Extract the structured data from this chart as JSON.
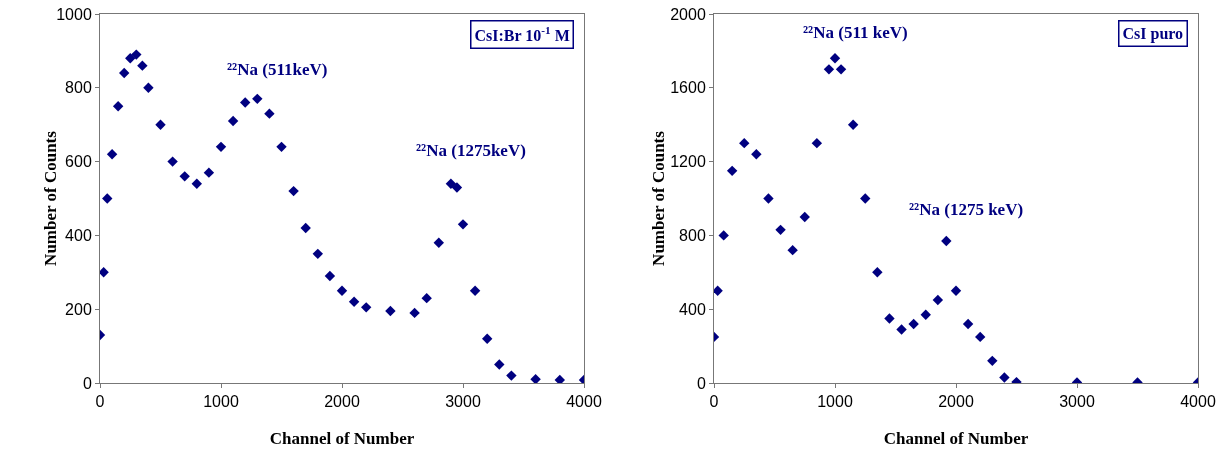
{
  "chart_data": [
    {
      "type": "scatter",
      "xlabel": "Channel of Number",
      "ylabel": "Number of Counts",
      "marker": "diamond",
      "xlim": [
        0,
        4000
      ],
      "xticks": [
        0,
        1000,
        2000,
        3000,
        4000
      ],
      "ylim": [
        0,
        1000
      ],
      "yticks": [
        0,
        200,
        400,
        600,
        800,
        1000
      ],
      "annotations": [
        "CsI:Br 10$^{-1}$ M",
        {
          "text": "²²Na (511keV)",
          "x": 1300,
          "y": 780
        },
        {
          "text": "²²Na (1275keV)",
          "x": 2900,
          "y": 560
        }
      ],
      "series": [
        {
          "color": "#000080",
          "x": [
            0,
            30,
            60,
            100,
            150,
            200,
            250,
            300,
            350,
            400,
            500,
            600,
            700,
            800,
            900,
            1000,
            1100,
            1200,
            1300,
            1400,
            1500,
            1600,
            1700,
            1800,
            1900,
            2000,
            2100,
            2200,
            2400,
            2600,
            2700,
            2800,
            2900,
            2950,
            3000,
            3100,
            3200,
            3300,
            3400,
            3600,
            3800,
            4000
          ],
          "values": [
            130,
            300,
            500,
            620,
            750,
            840,
            880,
            890,
            860,
            800,
            700,
            600,
            560,
            540,
            570,
            640,
            710,
            760,
            770,
            730,
            640,
            520,
            420,
            350,
            290,
            250,
            220,
            205,
            195,
            190,
            230,
            380,
            540,
            530,
            430,
            250,
            120,
            50,
            20,
            10,
            8,
            8
          ]
        }
      ]
    },
    {
      "type": "scatter",
      "xlabel": "Channel of Number",
      "ylabel": "Number of Counts",
      "marker": "diamond",
      "xlim": [
        0,
        4000
      ],
      "xticks": [
        0,
        1000,
        2000,
        3000,
        4000
      ],
      "ylim": [
        0,
        2000
      ],
      "yticks": [
        0,
        400,
        800,
        1200,
        1600,
        2000
      ],
      "annotations": [
        "CsI puro",
        {
          "text": "²²Na (511 keV)",
          "x": 1000,
          "y": 1760
        },
        {
          "text": "²²Na (1275 keV)",
          "x": 1920,
          "y": 800
        }
      ],
      "series": [
        {
          "color": "#000080",
          "x": [
            0,
            30,
            80,
            150,
            250,
            350,
            450,
            550,
            650,
            750,
            850,
            950,
            1000,
            1050,
            1150,
            1250,
            1350,
            1450,
            1550,
            1650,
            1750,
            1850,
            1920,
            2000,
            2100,
            2200,
            2300,
            2400,
            2500,
            3000,
            3500,
            4000
          ],
          "values": [
            250,
            500,
            800,
            1150,
            1300,
            1240,
            1000,
            830,
            720,
            900,
            1300,
            1700,
            1760,
            1700,
            1400,
            1000,
            600,
            350,
            290,
            320,
            370,
            450,
            770,
            500,
            320,
            250,
            120,
            30,
            5,
            3,
            3,
            3
          ]
        }
      ]
    }
  ]
}
